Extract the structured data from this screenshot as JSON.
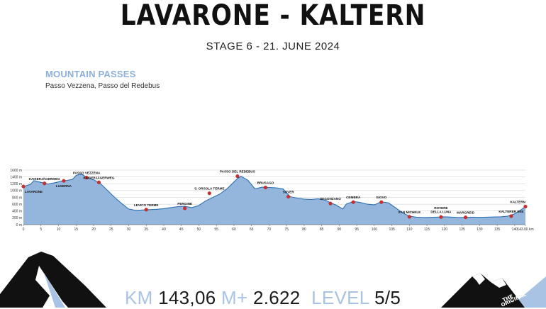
{
  "header": {
    "title": "LAVARONE - KALTERN",
    "subtitle": "STAGE 6 - 21. JUNE 2024"
  },
  "mountain_passes": {
    "heading": "MOUNTAIN PASSES",
    "list": "Passo Vezzena, Passo del Redebus"
  },
  "stats": {
    "km_label": "KM",
    "km_value": "143,06",
    "elev_label": "M+",
    "elev_value": "2.622",
    "level_label": "LEVEL",
    "level_value": "5/5"
  },
  "colors": {
    "profile_fill": "#95b6dc",
    "profile_line": "#2d6fb0",
    "waypoint": "#d12b2b",
    "accent": "#a9c3e4"
  },
  "chart_data": {
    "type": "area",
    "xlim": [
      0,
      143.06
    ],
    "ylim": [
      0,
      1600
    ],
    "x_ticks": [
      "0",
      "5",
      "10",
      "15",
      "20",
      "25",
      "30",
      "35",
      "40",
      "45",
      "50",
      "55",
      "60",
      "65",
      "70",
      "75",
      "80",
      "85",
      "90",
      "95",
      "100",
      "105",
      "110",
      "115",
      "120",
      "125",
      "130",
      "135",
      "140",
      "143.06 km"
    ],
    "y_ticks": [
      "0 m",
      "200 m",
      "400 m",
      "600 m",
      "800 m",
      "1000 m",
      "1200 m",
      "1400 m",
      "1600 m"
    ],
    "grid": true,
    "profile": [
      [
        0,
        1120
      ],
      [
        2,
        1180
      ],
      [
        3,
        1290
      ],
      [
        5,
        1240
      ],
      [
        7,
        1190
      ],
      [
        9,
        1230
      ],
      [
        11,
        1280
      ],
      [
        12,
        1290
      ],
      [
        14,
        1330
      ],
      [
        15,
        1440
      ],
      [
        16,
        1480
      ],
      [
        17,
        1460
      ],
      [
        18,
        1380
      ],
      [
        20,
        1320
      ],
      [
        22,
        1200
      ],
      [
        24,
        1000
      ],
      [
        26,
        800
      ],
      [
        28,
        620
      ],
      [
        30,
        460
      ],
      [
        32,
        420
      ],
      [
        34,
        430
      ],
      [
        36,
        440
      ],
      [
        38,
        450
      ],
      [
        40,
        470
      ],
      [
        42,
        500
      ],
      [
        44,
        530
      ],
      [
        46,
        540
      ],
      [
        48,
        500
      ],
      [
        50,
        560
      ],
      [
        52,
        700
      ],
      [
        54,
        800
      ],
      [
        56,
        900
      ],
      [
        58,
        1050
      ],
      [
        60,
        1250
      ],
      [
        61,
        1350
      ],
      [
        62,
        1420
      ],
      [
        64,
        1300
      ],
      [
        66,
        1050
      ],
      [
        68,
        1100
      ],
      [
        70,
        1090
      ],
      [
        72,
        1080
      ],
      [
        74,
        1050
      ],
      [
        76,
        820
      ],
      [
        78,
        780
      ],
      [
        80,
        750
      ],
      [
        82,
        740
      ],
      [
        84,
        760
      ],
      [
        86,
        720
      ],
      [
        88,
        620
      ],
      [
        89,
        580
      ],
      [
        90,
        520
      ],
      [
        91,
        460
      ],
      [
        92,
        600
      ],
      [
        94,
        680
      ],
      [
        96,
        650
      ],
      [
        98,
        600
      ],
      [
        100,
        580
      ],
      [
        102,
        670
      ],
      [
        104,
        640
      ],
      [
        106,
        500
      ],
      [
        108,
        350
      ],
      [
        110,
        250
      ],
      [
        112,
        220
      ],
      [
        114,
        210
      ],
      [
        116,
        215
      ],
      [
        118,
        220
      ],
      [
        120,
        230
      ],
      [
        122,
        220
      ],
      [
        124,
        210
      ],
      [
        126,
        215
      ],
      [
        128,
        220
      ],
      [
        130,
        215
      ],
      [
        132,
        220
      ],
      [
        134,
        225
      ],
      [
        136,
        230
      ],
      [
        138,
        250
      ],
      [
        140,
        320
      ],
      [
        142,
        450
      ],
      [
        143.06,
        530
      ]
    ],
    "waypoints": [
      {
        "name": "LAVARONE",
        "km": 0,
        "elev": 1120
      },
      {
        "name": "KAISERJÄGERWEG",
        "km": 6,
        "elev": 1210
      },
      {
        "name": "LUSERNA",
        "km": 11.5,
        "elev": 1285
      },
      {
        "name": "PASSO VEZZENA",
        "km": 18,
        "elev": 1380
      },
      {
        "name": "KAISERJÄGERWEG",
        "km": 21.5,
        "elev": 1240
      },
      {
        "name": "LEVICO TERME",
        "km": 35,
        "elev": 440
      },
      {
        "name": "PERGINE",
        "km": 46,
        "elev": 480
      },
      {
        "name": "S. ORSOLA TERME",
        "km": 53,
        "elev": 920
      },
      {
        "name": "PASSO DEL REDEBUS",
        "km": 61,
        "elev": 1420
      },
      {
        "name": "BRUSAGO",
        "km": 69,
        "elev": 1090
      },
      {
        "name": "SOVER",
        "km": 75.5,
        "elev": 820
      },
      {
        "name": "SEGONZANO",
        "km": 87.5,
        "elev": 620
      },
      {
        "name": "CEMBRA",
        "km": 94,
        "elev": 660
      },
      {
        "name": "GIOVO",
        "km": 102,
        "elev": 660
      },
      {
        "name": "SAN MICHELE",
        "km": 110,
        "elev": 230
      },
      {
        "name": "ROVERE DELLA LUNA",
        "km": 119,
        "elev": 225
      },
      {
        "name": "MARGREID",
        "km": 126,
        "elev": 215
      },
      {
        "name": "KALTERER SEE",
        "km": 139,
        "elev": 250
      },
      {
        "name": "KALTERN",
        "km": 143.06,
        "elev": 530
      }
    ]
  }
}
